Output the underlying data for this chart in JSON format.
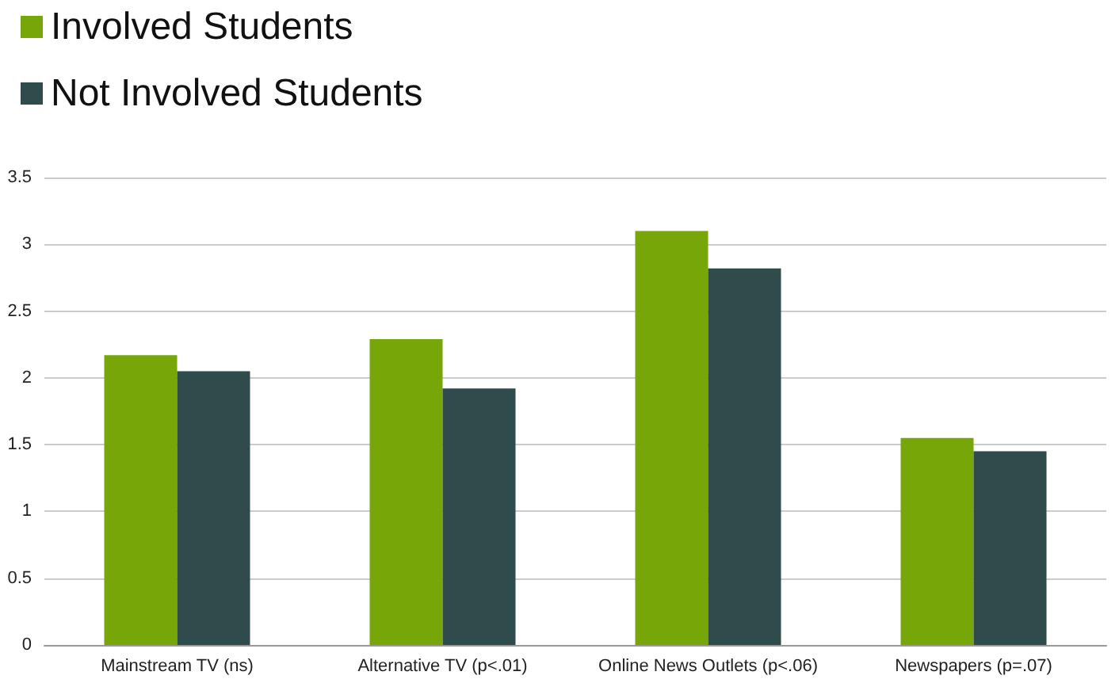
{
  "chart_data": {
    "type": "bar",
    "categories": [
      "Mainstream TV (ns)",
      "Alternative TV (p<.01)",
      "Online News Outlets (p<.06)",
      "Newspapers (p=.07)"
    ],
    "series": [
      {
        "name": "Involved Students",
        "color": "#77a609",
        "values": [
          2.17,
          2.29,
          3.1,
          1.55
        ]
      },
      {
        "name": "Not Involved Students",
        "color": "#2f4b4b",
        "values": [
          2.05,
          1.92,
          2.82,
          1.45
        ]
      }
    ],
    "ylim": [
      0,
      3.5
    ],
    "yticks": [
      0,
      0.5,
      1,
      1.5,
      2,
      2.5,
      3,
      3.5
    ],
    "grid": "y",
    "legend": "top left"
  }
}
